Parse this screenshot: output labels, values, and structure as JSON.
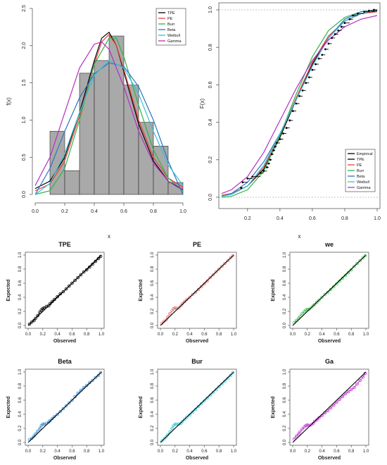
{
  "chart_data": [
    {
      "type": "histogram",
      "xlabel": "x",
      "ylabel": "f(x)",
      "xlim": [
        0,
        1
      ],
      "ylim": [
        0,
        2.5
      ],
      "x_ticks": [
        "0.0",
        "0.2",
        "0.4",
        "0.6",
        "0.8",
        "1.0"
      ],
      "y_ticks": [
        "0.0",
        "0.5",
        "1.0",
        "1.5",
        "2.0",
        "2.5"
      ],
      "bins": [
        {
          "from": 0.1,
          "to": 0.2,
          "height": 0.85
        },
        {
          "from": 0.2,
          "to": 0.3,
          "height": 0.32
        },
        {
          "from": 0.3,
          "to": 0.4,
          "height": 1.63
        },
        {
          "from": 0.4,
          "to": 0.5,
          "height": 1.8
        },
        {
          "from": 0.5,
          "to": 0.6,
          "height": 2.13
        },
        {
          "from": 0.6,
          "to": 0.7,
          "height": 1.47
        },
        {
          "from": 0.7,
          "to": 0.8,
          "height": 0.97
        },
        {
          "from": 0.8,
          "to": 0.9,
          "height": 0.65
        },
        {
          "from": 0.9,
          "to": 1.0,
          "height": 0.16
        }
      ],
      "legend": [
        {
          "name": "TPE",
          "color": "#000000"
        },
        {
          "name": "PE",
          "color": "#e8423c"
        },
        {
          "name": "Burr",
          "color": "#2fb34a"
        },
        {
          "name": "Beta",
          "color": "#2a76c4"
        },
        {
          "name": "Weibull",
          "color": "#38c0d4"
        },
        {
          "name": "Gamma",
          "color": "#b52fc2"
        }
      ],
      "legend_position": "top-right",
      "curves": [
        {
          "name": "TPE",
          "color": "#000000",
          "x": [
            0,
            0.1,
            0.2,
            0.3,
            0.4,
            0.45,
            0.5,
            0.55,
            0.6,
            0.7,
            0.8,
            0.9,
            1.0
          ],
          "y": [
            0.08,
            0.18,
            0.5,
            1.1,
            1.8,
            2.1,
            2.18,
            2.0,
            1.65,
            0.95,
            0.45,
            0.18,
            0.06
          ]
        },
        {
          "name": "PE",
          "color": "#e8423c",
          "x": [
            0,
            0.1,
            0.2,
            0.3,
            0.4,
            0.45,
            0.5,
            0.55,
            0.6,
            0.7,
            0.8,
            0.9,
            1.0
          ],
          "y": [
            0.05,
            0.14,
            0.45,
            1.05,
            1.75,
            2.05,
            2.15,
            2.0,
            1.68,
            1.0,
            0.5,
            0.22,
            0.1
          ]
        },
        {
          "name": "Burr",
          "color": "#2fb34a",
          "x": [
            0,
            0.1,
            0.2,
            0.3,
            0.4,
            0.5,
            0.55,
            0.6,
            0.7,
            0.8,
            0.9,
            1.0
          ],
          "y": [
            0.0,
            0.05,
            0.35,
            1.0,
            1.75,
            2.1,
            2.1,
            1.85,
            1.2,
            0.6,
            0.22,
            0.05
          ]
        },
        {
          "name": "Beta",
          "color": "#2a76c4",
          "x": [
            0,
            0.1,
            0.2,
            0.3,
            0.4,
            0.5,
            0.6,
            0.7,
            0.8,
            0.9,
            1.0
          ],
          "y": [
            0.0,
            0.35,
            0.85,
            1.3,
            1.62,
            1.77,
            1.72,
            1.45,
            1.0,
            0.45,
            0.0
          ]
        },
        {
          "name": "Weibull",
          "color": "#38c0d4",
          "x": [
            0,
            0.1,
            0.2,
            0.3,
            0.4,
            0.5,
            0.6,
            0.7,
            0.8,
            0.9,
            1.0
          ],
          "y": [
            0.0,
            0.15,
            0.55,
            1.1,
            1.6,
            1.8,
            1.7,
            1.35,
            0.85,
            0.4,
            0.12
          ]
        },
        {
          "name": "Gamma",
          "color": "#b52fc2",
          "x": [
            0,
            0.1,
            0.2,
            0.3,
            0.4,
            0.45,
            0.5,
            0.6,
            0.7,
            0.8,
            0.9,
            1.0
          ],
          "y": [
            0.12,
            0.5,
            1.1,
            1.7,
            2.02,
            2.05,
            1.95,
            1.45,
            0.85,
            0.42,
            0.18,
            0.07
          ]
        }
      ]
    },
    {
      "type": "line",
      "xlabel": "x",
      "ylabel": "F(x)",
      "xlim": [
        0.04,
        1.0
      ],
      "ylim": [
        0,
        1
      ],
      "x_ticks": [
        "0.2",
        "0.4",
        "0.6",
        "0.8",
        "1.0"
      ],
      "y_ticks": [
        "0.0",
        "0.2",
        "0.4",
        "0.6",
        "0.8",
        "1.0"
      ],
      "reference_lines": [
        0,
        1
      ],
      "legend": [
        {
          "name": "Empirical",
          "color": "#000000"
        },
        {
          "name": "TPE",
          "color": "#000000"
        },
        {
          "name": "PE",
          "color": "#e8423c"
        },
        {
          "name": "Burr",
          "color": "#2fb34a"
        },
        {
          "name": "Beta",
          "color": "#2a76c4"
        },
        {
          "name": "Weibull",
          "color": "#38c0d4"
        },
        {
          "name": "Gamma",
          "color": "#b52fc2"
        }
      ],
      "legend_position": "bottom-right",
      "empirical": {
        "x": [
          0.16,
          0.17,
          0.2,
          0.23,
          0.28,
          0.3,
          0.32,
          0.33,
          0.34,
          0.35,
          0.36,
          0.37,
          0.38,
          0.4,
          0.42,
          0.44,
          0.46,
          0.48,
          0.5,
          0.52,
          0.54,
          0.56,
          0.58,
          0.6,
          0.62,
          0.64,
          0.66,
          0.68,
          0.7,
          0.72,
          0.74,
          0.76,
          0.78,
          0.8,
          0.83,
          0.85,
          0.88,
          0.92,
          0.95,
          0.98
        ],
        "y": [
          0.05,
          0.08,
          0.1,
          0.11,
          0.13,
          0.14,
          0.16,
          0.18,
          0.2,
          0.23,
          0.25,
          0.27,
          0.29,
          0.31,
          0.34,
          0.37,
          0.41,
          0.46,
          0.5,
          0.54,
          0.57,
          0.61,
          0.64,
          0.68,
          0.71,
          0.74,
          0.76,
          0.79,
          0.82,
          0.85,
          0.87,
          0.89,
          0.91,
          0.93,
          0.95,
          0.97,
          0.98,
          0.99,
          0.995,
          1.0
        ]
      },
      "curves": [
        {
          "name": "TPE",
          "color": "#000000",
          "x": [
            0.04,
            0.1,
            0.2,
            0.3,
            0.4,
            0.5,
            0.6,
            0.7,
            0.8,
            0.9,
            1.0
          ],
          "y": [
            0.01,
            0.02,
            0.06,
            0.15,
            0.32,
            0.52,
            0.71,
            0.86,
            0.94,
            0.98,
            0.995
          ]
        },
        {
          "name": "PE",
          "color": "#e8423c",
          "x": [
            0.04,
            0.1,
            0.2,
            0.3,
            0.4,
            0.5,
            0.6,
            0.7,
            0.8,
            0.9,
            1.0
          ],
          "y": [
            0.01,
            0.02,
            0.06,
            0.16,
            0.33,
            0.53,
            0.72,
            0.86,
            0.94,
            0.98,
            0.99
          ]
        },
        {
          "name": "Burr",
          "color": "#2fb34a",
          "x": [
            0.04,
            0.1,
            0.2,
            0.3,
            0.4,
            0.5,
            0.6,
            0.7,
            0.8,
            0.9,
            1.0
          ],
          "y": [
            0.0,
            0.005,
            0.04,
            0.14,
            0.33,
            0.55,
            0.75,
            0.89,
            0.96,
            0.99,
            1.0
          ]
        },
        {
          "name": "Beta",
          "color": "#2a76c4",
          "x": [
            0.04,
            0.1,
            0.2,
            0.3,
            0.4,
            0.5,
            0.6,
            0.7,
            0.8,
            0.9,
            1.0
          ],
          "y": [
            0.005,
            0.02,
            0.08,
            0.19,
            0.34,
            0.52,
            0.7,
            0.85,
            0.95,
            0.99,
            1.0
          ]
        },
        {
          "name": "Weibull",
          "color": "#38c0d4",
          "x": [
            0.04,
            0.1,
            0.2,
            0.3,
            0.4,
            0.5,
            0.6,
            0.7,
            0.8,
            0.9,
            1.0
          ],
          "y": [
            0.005,
            0.015,
            0.06,
            0.17,
            0.34,
            0.52,
            0.7,
            0.85,
            0.94,
            0.98,
            1.0
          ]
        },
        {
          "name": "Gamma",
          "color": "#b52fc2",
          "x": [
            0.04,
            0.1,
            0.2,
            0.3,
            0.4,
            0.5,
            0.6,
            0.7,
            0.8,
            0.9,
            1.0
          ],
          "y": [
            0.02,
            0.04,
            0.11,
            0.24,
            0.41,
            0.58,
            0.73,
            0.84,
            0.91,
            0.95,
            0.97
          ]
        }
      ]
    },
    {
      "type": "scatter",
      "title": "TPE",
      "color": "#000000",
      "xlabel": "Observed",
      "ylabel": "Expected",
      "xlim": [
        0,
        1
      ],
      "ylim": [
        0,
        1
      ],
      "ticks": [
        "0.0",
        "0.2",
        "0.4",
        "0.6",
        "0.8",
        "1.0"
      ],
      "reference_line": [
        0,
        0,
        1,
        1
      ],
      "observed": [
        0.02,
        0.05,
        0.08,
        0.1,
        0.13,
        0.16,
        0.18,
        0.2,
        0.22,
        0.25,
        0.28,
        0.3,
        0.33,
        0.36,
        0.4,
        0.44,
        0.48,
        0.52,
        0.56,
        0.6,
        0.64,
        0.68,
        0.72,
        0.76,
        0.8,
        0.84,
        0.88,
        0.92,
        0.96,
        0.99
      ],
      "expected": [
        0.02,
        0.05,
        0.07,
        0.1,
        0.14,
        0.19,
        0.22,
        0.24,
        0.25,
        0.27,
        0.28,
        0.31,
        0.34,
        0.37,
        0.41,
        0.45,
        0.48,
        0.52,
        0.56,
        0.6,
        0.64,
        0.68,
        0.72,
        0.76,
        0.79,
        0.83,
        0.87,
        0.91,
        0.95,
        0.98
      ]
    },
    {
      "type": "scatter",
      "title": "PE",
      "color": "#e07a78",
      "xlabel": "Observed",
      "ylabel": "Expected",
      "xlim": [
        0,
        1
      ],
      "ylim": [
        0,
        1
      ],
      "ticks": [
        "0.0",
        "0.2",
        "0.4",
        "0.6",
        "0.8",
        "1.0"
      ],
      "reference_line": [
        0,
        0,
        1,
        1
      ],
      "observed": [
        0.02,
        0.05,
        0.08,
        0.1,
        0.13,
        0.16,
        0.18,
        0.2,
        0.22,
        0.25,
        0.28,
        0.3,
        0.33,
        0.36,
        0.4,
        0.44,
        0.48,
        0.52,
        0.56,
        0.6,
        0.64,
        0.68,
        0.72,
        0.76,
        0.8,
        0.84,
        0.88,
        0.92,
        0.96,
        0.99
      ],
      "expected": [
        0.03,
        0.06,
        0.08,
        0.12,
        0.17,
        0.21,
        0.24,
        0.25,
        0.24,
        0.25,
        0.28,
        0.31,
        0.34,
        0.37,
        0.4,
        0.44,
        0.47,
        0.51,
        0.55,
        0.59,
        0.63,
        0.68,
        0.72,
        0.76,
        0.8,
        0.84,
        0.88,
        0.92,
        0.96,
        0.99
      ]
    },
    {
      "type": "scatter",
      "title": "we",
      "color": "#47c15a",
      "xlabel": "Observed",
      "ylabel": "Expected",
      "xlim": [
        0,
        1
      ],
      "ylim": [
        0,
        1
      ],
      "ticks": [
        "0.0",
        "0.2",
        "0.4",
        "0.6",
        "0.8",
        "1.0"
      ],
      "reference_line": [
        0,
        0,
        1,
        1
      ],
      "observed": [
        0.02,
        0.05,
        0.08,
        0.1,
        0.13,
        0.16,
        0.18,
        0.2,
        0.22,
        0.25,
        0.28,
        0.3,
        0.33,
        0.36,
        0.4,
        0.44,
        0.48,
        0.52,
        0.56,
        0.6,
        0.64,
        0.68,
        0.72,
        0.76,
        0.8,
        0.84,
        0.88,
        0.92,
        0.96,
        0.99
      ],
      "expected": [
        0.04,
        0.07,
        0.1,
        0.13,
        0.17,
        0.2,
        0.22,
        0.23,
        0.23,
        0.25,
        0.28,
        0.3,
        0.33,
        0.36,
        0.4,
        0.44,
        0.47,
        0.51,
        0.55,
        0.59,
        0.63,
        0.67,
        0.71,
        0.75,
        0.79,
        0.84,
        0.88,
        0.92,
        0.96,
        0.99
      ]
    },
    {
      "type": "scatter",
      "title": "Beta",
      "color": "#3d8fd6",
      "xlabel": "Observed",
      "ylabel": "Expected",
      "xlim": [
        0,
        1
      ],
      "ylim": [
        0,
        1
      ],
      "ticks": [
        "0.0",
        "0.2",
        "0.4",
        "0.6",
        "0.8",
        "1.0"
      ],
      "reference_line": [
        0,
        0,
        1,
        1
      ],
      "observed": [
        0.02,
        0.05,
        0.08,
        0.1,
        0.13,
        0.16,
        0.18,
        0.2,
        0.22,
        0.25,
        0.28,
        0.3,
        0.33,
        0.36,
        0.4,
        0.44,
        0.48,
        0.52,
        0.56,
        0.6,
        0.64,
        0.68,
        0.72,
        0.76,
        0.8,
        0.84,
        0.88,
        0.92,
        0.96,
        0.99
      ],
      "expected": [
        0.04,
        0.06,
        0.09,
        0.12,
        0.16,
        0.2,
        0.24,
        0.26,
        0.26,
        0.27,
        0.29,
        0.31,
        0.34,
        0.37,
        0.4,
        0.44,
        0.48,
        0.52,
        0.56,
        0.6,
        0.65,
        0.7,
        0.74,
        0.78,
        0.81,
        0.85,
        0.88,
        0.92,
        0.95,
        0.99
      ]
    },
    {
      "type": "scatter",
      "title": "Bur",
      "color": "#3fc8d8",
      "xlabel": "Observed",
      "ylabel": "Expected",
      "xlim": [
        0,
        1
      ],
      "ylim": [
        0,
        1
      ],
      "ticks": [
        "0.0",
        "0.2",
        "0.4",
        "0.6",
        "0.8",
        "1.0"
      ],
      "reference_line": [
        0,
        0,
        1,
        1
      ],
      "observed": [
        0.02,
        0.05,
        0.08,
        0.1,
        0.13,
        0.16,
        0.18,
        0.2,
        0.22,
        0.25,
        0.28,
        0.3,
        0.33,
        0.36,
        0.4,
        0.44,
        0.48,
        0.52,
        0.56,
        0.6,
        0.64,
        0.68,
        0.72,
        0.76,
        0.8,
        0.84,
        0.88,
        0.92,
        0.96,
        0.99
      ],
      "expected": [
        0.02,
        0.05,
        0.08,
        0.11,
        0.15,
        0.2,
        0.24,
        0.26,
        0.26,
        0.26,
        0.27,
        0.3,
        0.33,
        0.36,
        0.39,
        0.43,
        0.47,
        0.51,
        0.55,
        0.59,
        0.63,
        0.67,
        0.71,
        0.75,
        0.79,
        0.83,
        0.87,
        0.91,
        0.95,
        0.99
      ]
    },
    {
      "type": "scatter",
      "title": "Ga",
      "color": "#c23bd0",
      "xlabel": "Observed",
      "ylabel": "Expected",
      "xlim": [
        0,
        1
      ],
      "ylim": [
        0,
        1
      ],
      "ticks": [
        "0.0",
        "0.2",
        "0.4",
        "0.6",
        "0.8",
        "1.0"
      ],
      "reference_line": [
        0,
        0,
        1,
        1
      ],
      "observed": [
        0.02,
        0.05,
        0.08,
        0.1,
        0.13,
        0.16,
        0.18,
        0.2,
        0.22,
        0.25,
        0.28,
        0.3,
        0.33,
        0.36,
        0.4,
        0.44,
        0.48,
        0.52,
        0.56,
        0.6,
        0.64,
        0.68,
        0.72,
        0.76,
        0.8,
        0.84,
        0.88,
        0.92,
        0.96,
        0.99
      ],
      "expected": [
        0.05,
        0.09,
        0.12,
        0.15,
        0.19,
        0.22,
        0.24,
        0.25,
        0.24,
        0.25,
        0.27,
        0.3,
        0.32,
        0.35,
        0.38,
        0.42,
        0.45,
        0.49,
        0.53,
        0.57,
        0.61,
        0.65,
        0.69,
        0.72,
        0.75,
        0.78,
        0.83,
        0.88,
        0.93,
        0.98
      ]
    }
  ]
}
